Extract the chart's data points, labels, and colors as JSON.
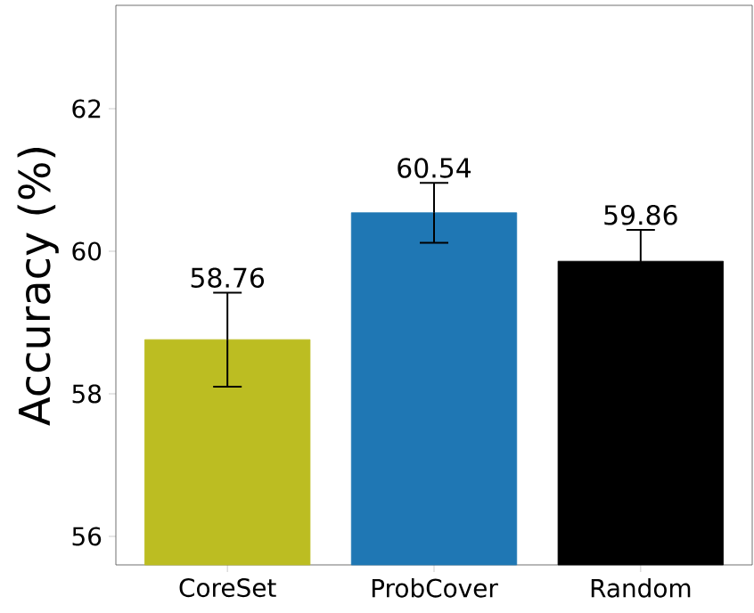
{
  "chart_data": {
    "type": "bar",
    "ylabel": "Accuracy (%)",
    "categories": [
      "CoreSet",
      "ProbCover",
      "Random"
    ],
    "values": [
      58.76,
      60.54,
      59.86
    ],
    "colors": [
      "#bcbd22",
      "#1f77b4",
      "#000000"
    ],
    "errors": [
      0.66,
      0.42,
      0.44
    ],
    "ylim": [
      55.6,
      63.45
    ],
    "yticks": [
      56,
      58,
      60,
      62
    ],
    "data_labels": true
  }
}
